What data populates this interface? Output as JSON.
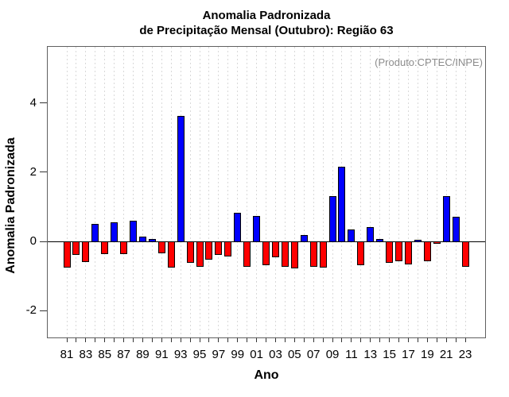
{
  "chart_data": {
    "type": "bar",
    "title_line1": "Anomalia Padronizada",
    "title_line2": "de Precipitação Mensal (Outubro): Região 63",
    "annotation": "(Produto:CPTEC/INPE)",
    "xlabel": "Ano",
    "ylabel": "Anomalia Padronizada",
    "years": [
      1981,
      1982,
      1983,
      1984,
      1985,
      1986,
      1987,
      1988,
      1989,
      1990,
      1991,
      1992,
      1993,
      1994,
      1995,
      1996,
      1997,
      1998,
      1999,
      2000,
      2001,
      2002,
      2003,
      2004,
      2005,
      2006,
      2007,
      2008,
      2009,
      2010,
      2011,
      2012,
      2013,
      2014,
      2015,
      2016,
      2017,
      2018,
      2019,
      2020,
      2021,
      2022,
      2023
    ],
    "values": [
      -0.76,
      -0.38,
      -0.59,
      0.53,
      -0.37,
      0.57,
      -0.37,
      0.63,
      0.15,
      0.1,
      -0.35,
      -0.75,
      3.65,
      -0.62,
      -0.73,
      -0.53,
      -0.4,
      -0.43,
      0.84,
      -0.73,
      0.76,
      -0.69,
      -0.47,
      -0.73,
      -0.79,
      0.2,
      -0.73,
      -0.75,
      1.33,
      2.19,
      0.36,
      -0.69,
      0.43,
      0.1,
      -0.63,
      -0.57,
      -0.66,
      0.08,
      -0.58,
      -0.06,
      1.34,
      0.74,
      -0.73
    ],
    "x_tick_labels": [
      "81",
      "83",
      "85",
      "87",
      "89",
      "91",
      "93",
      "95",
      "97",
      "99",
      "01",
      "03",
      "05",
      "07",
      "09",
      "11",
      "13",
      "15",
      "17",
      "19",
      "21",
      "23"
    ],
    "y_ticks": [
      4,
      2,
      0,
      -2
    ],
    "ylim": [
      -2.8,
      5.66
    ],
    "grid": "vertical-dashed-per-year",
    "legend": "none",
    "colors": {
      "positive_bar": "#0000ff",
      "negative_bar": "#ff0000",
      "bar_border": "#000000",
      "gridline": "#d9d9d9",
      "frame": "#606060",
      "annotation_text": "#8c8c8c",
      "zero_line": "#000000"
    }
  }
}
